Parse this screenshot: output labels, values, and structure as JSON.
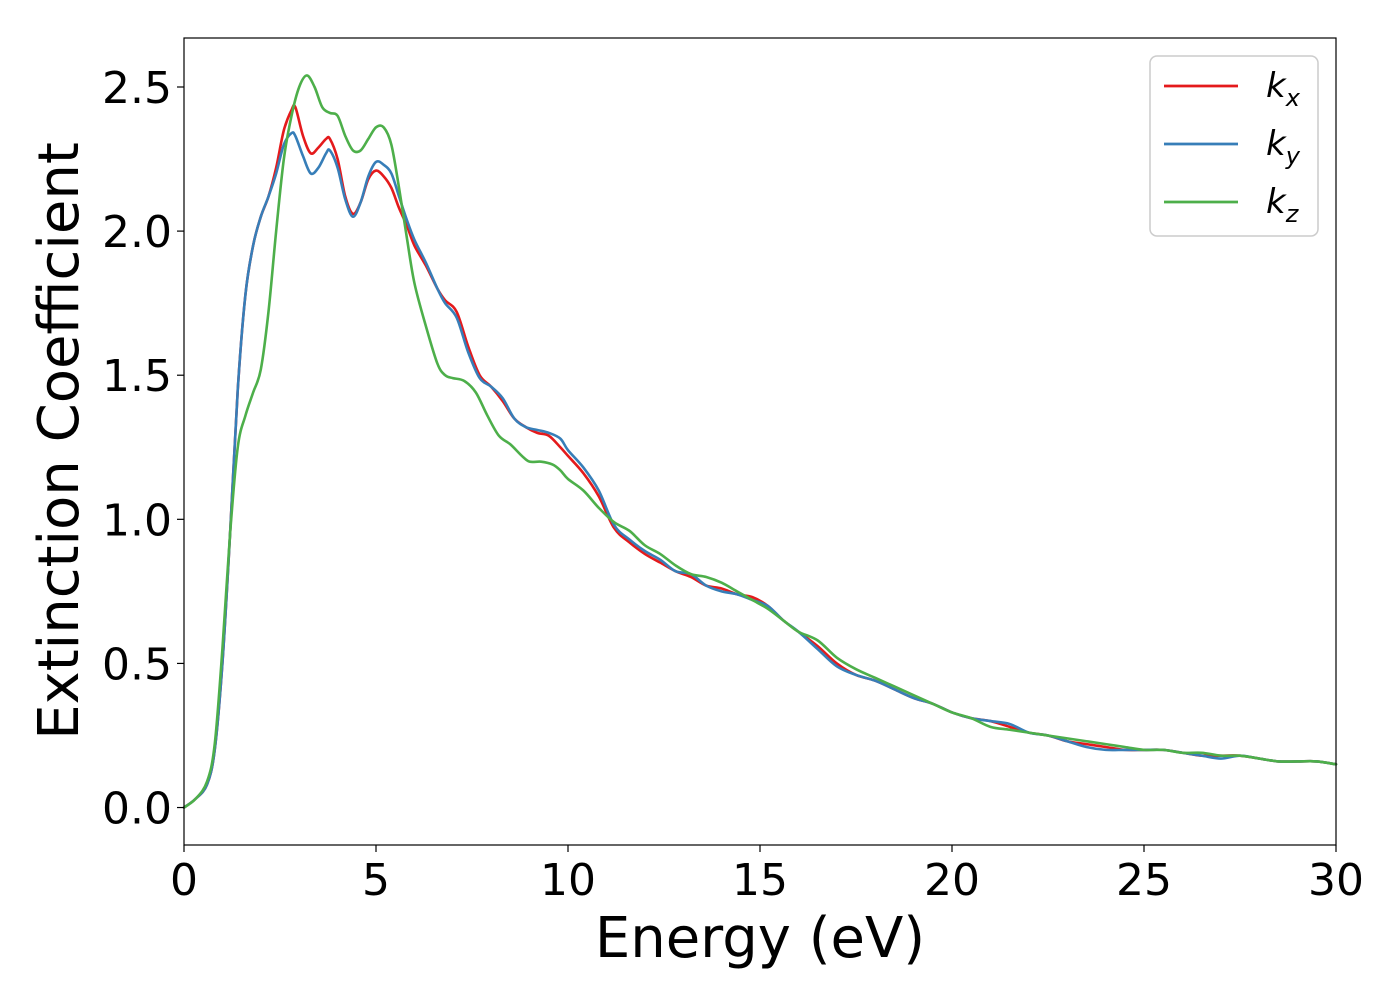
{
  "chart_data": {
    "type": "line",
    "xlabel": "Energy (eV)",
    "ylabel": "Extinction Coefficient",
    "xlim": [
      0,
      30
    ],
    "ylim": [
      -0.13,
      2.67
    ],
    "xticks": [
      0,
      5,
      10,
      15,
      20,
      25,
      30
    ],
    "yticks": [
      0.0,
      0.5,
      1.0,
      1.5,
      2.0,
      2.5
    ],
    "xtick_labels": [
      "0",
      "5",
      "10",
      "15",
      "20",
      "25",
      "30"
    ],
    "ytick_labels": [
      "0.0",
      "0.5",
      "1.0",
      "1.5",
      "2.0",
      "2.5"
    ],
    "grid": false,
    "legend_position": "top-right",
    "series": [
      {
        "name": "k_x",
        "label_base": "k",
        "label_sub": "x",
        "color": "#e41a1c",
        "x": [
          0,
          0.3,
          0.6,
          0.8,
          1.0,
          1.2,
          1.4,
          1.6,
          1.8,
          2.0,
          2.2,
          2.4,
          2.6,
          2.8,
          2.9,
          3.1,
          3.3,
          3.5,
          3.7,
          3.8,
          4.0,
          4.2,
          4.4,
          4.6,
          4.8,
          5.0,
          5.2,
          5.4,
          5.6,
          5.8,
          6.0,
          6.3,
          6.6,
          6.8,
          7.1,
          7.4,
          7.7,
          8.0,
          8.3,
          8.6,
          8.9,
          9.2,
          9.5,
          9.8,
          10.0,
          10.4,
          10.8,
          11.2,
          11.6,
          12.0,
          12.4,
          12.8,
          13.2,
          13.6,
          14.0,
          14.4,
          14.8,
          15.2,
          15.6,
          16.0,
          16.5,
          17.0,
          17.5,
          18.0,
          18.5,
          19.0,
          19.5,
          20.0,
          20.5,
          21.0,
          21.5,
          22.0,
          22.5,
          23.0,
          23.5,
          24.0,
          24.5,
          25.0,
          25.5,
          26.0,
          26.5,
          27.0,
          27.5,
          28.0,
          28.5,
          29.0,
          29.5,
          30.0
        ],
        "y": [
          0.0,
          0.03,
          0.08,
          0.2,
          0.5,
          0.95,
          1.45,
          1.78,
          1.95,
          2.05,
          2.12,
          2.22,
          2.35,
          2.42,
          2.43,
          2.33,
          2.27,
          2.29,
          2.32,
          2.32,
          2.25,
          2.12,
          2.06,
          2.1,
          2.18,
          2.21,
          2.19,
          2.15,
          2.08,
          2.02,
          1.95,
          1.88,
          1.8,
          1.76,
          1.72,
          1.6,
          1.5,
          1.46,
          1.41,
          1.35,
          1.32,
          1.3,
          1.29,
          1.25,
          1.22,
          1.16,
          1.08,
          0.97,
          0.92,
          0.88,
          0.85,
          0.82,
          0.8,
          0.77,
          0.76,
          0.74,
          0.73,
          0.7,
          0.65,
          0.61,
          0.56,
          0.5,
          0.46,
          0.44,
          0.41,
          0.38,
          0.36,
          0.33,
          0.31,
          0.3,
          0.28,
          0.26,
          0.25,
          0.23,
          0.22,
          0.21,
          0.2,
          0.2,
          0.2,
          0.19,
          0.18,
          0.18,
          0.18,
          0.17,
          0.16,
          0.16,
          0.16,
          0.15
        ]
      },
      {
        "name": "k_y",
        "label_base": "k",
        "label_sub": "y",
        "color": "#377eb8",
        "x": [
          0,
          0.3,
          0.6,
          0.8,
          1.0,
          1.2,
          1.4,
          1.6,
          1.8,
          2.0,
          2.2,
          2.4,
          2.6,
          2.8,
          2.9,
          3.1,
          3.3,
          3.5,
          3.7,
          3.8,
          4.0,
          4.2,
          4.4,
          4.6,
          4.8,
          5.0,
          5.2,
          5.4,
          5.6,
          5.8,
          6.0,
          6.3,
          6.6,
          6.8,
          7.1,
          7.4,
          7.7,
          8.0,
          8.3,
          8.6,
          8.9,
          9.2,
          9.5,
          9.8,
          10.0,
          10.4,
          10.8,
          11.2,
          11.6,
          12.0,
          12.4,
          12.8,
          13.2,
          13.6,
          14.0,
          14.4,
          14.8,
          15.2,
          15.6,
          16.0,
          16.5,
          17.0,
          17.5,
          18.0,
          18.5,
          19.0,
          19.5,
          20.0,
          20.5,
          21.0,
          21.5,
          22.0,
          22.5,
          23.0,
          23.5,
          24.0,
          24.5,
          25.0,
          25.5,
          26.0,
          26.5,
          27.0,
          27.5,
          28.0,
          28.5,
          29.0,
          29.5,
          30.0
        ],
        "y": [
          0.0,
          0.03,
          0.08,
          0.2,
          0.5,
          0.95,
          1.45,
          1.78,
          1.95,
          2.05,
          2.12,
          2.2,
          2.3,
          2.34,
          2.33,
          2.26,
          2.2,
          2.22,
          2.27,
          2.28,
          2.22,
          2.11,
          2.05,
          2.1,
          2.19,
          2.24,
          2.23,
          2.2,
          2.12,
          2.04,
          1.97,
          1.89,
          1.8,
          1.75,
          1.7,
          1.58,
          1.49,
          1.46,
          1.42,
          1.35,
          1.32,
          1.31,
          1.3,
          1.28,
          1.24,
          1.18,
          1.1,
          0.98,
          0.93,
          0.89,
          0.86,
          0.82,
          0.81,
          0.77,
          0.75,
          0.74,
          0.72,
          0.7,
          0.65,
          0.61,
          0.55,
          0.49,
          0.46,
          0.44,
          0.41,
          0.38,
          0.36,
          0.33,
          0.31,
          0.3,
          0.29,
          0.26,
          0.25,
          0.23,
          0.21,
          0.2,
          0.2,
          0.2,
          0.2,
          0.19,
          0.18,
          0.17,
          0.18,
          0.17,
          0.16,
          0.16,
          0.16,
          0.15
        ]
      },
      {
        "name": "k_z",
        "label_base": "k",
        "label_sub": "z",
        "color": "#4daf4a",
        "x": [
          0,
          0.3,
          0.6,
          0.8,
          1.0,
          1.2,
          1.4,
          1.6,
          1.8,
          2.0,
          2.2,
          2.4,
          2.6,
          2.8,
          3.0,
          3.2,
          3.4,
          3.6,
          3.8,
          4.0,
          4.2,
          4.4,
          4.6,
          4.8,
          5.0,
          5.2,
          5.4,
          5.6,
          5.8,
          6.0,
          6.3,
          6.6,
          6.8,
          7.0,
          7.3,
          7.6,
          7.9,
          8.2,
          8.5,
          8.8,
          9.0,
          9.3,
          9.6,
          9.8,
          10.0,
          10.4,
          10.8,
          11.2,
          11.6,
          12.0,
          12.4,
          12.8,
          13.2,
          13.6,
          14.0,
          14.4,
          14.8,
          15.2,
          15.6,
          16.0,
          16.5,
          17.0,
          17.5,
          18.0,
          18.5,
          19.0,
          19.5,
          20.0,
          20.5,
          21.0,
          21.5,
          22.0,
          22.5,
          23.0,
          23.5,
          24.0,
          24.5,
          25.0,
          25.5,
          26.0,
          26.5,
          27.0,
          27.5,
          28.0,
          28.5,
          29.0,
          29.5,
          30.0
        ],
        "y": [
          0.0,
          0.03,
          0.09,
          0.22,
          0.55,
          0.95,
          1.25,
          1.36,
          1.44,
          1.52,
          1.72,
          2.0,
          2.25,
          2.4,
          2.5,
          2.54,
          2.5,
          2.43,
          2.41,
          2.4,
          2.33,
          2.28,
          2.28,
          2.32,
          2.36,
          2.36,
          2.3,
          2.15,
          1.98,
          1.82,
          1.67,
          1.54,
          1.5,
          1.49,
          1.48,
          1.44,
          1.36,
          1.29,
          1.26,
          1.22,
          1.2,
          1.2,
          1.19,
          1.17,
          1.14,
          1.1,
          1.04,
          0.99,
          0.96,
          0.91,
          0.88,
          0.84,
          0.81,
          0.8,
          0.78,
          0.75,
          0.72,
          0.69,
          0.65,
          0.61,
          0.58,
          0.52,
          0.48,
          0.45,
          0.42,
          0.39,
          0.36,
          0.33,
          0.31,
          0.28,
          0.27,
          0.26,
          0.25,
          0.24,
          0.23,
          0.22,
          0.21,
          0.2,
          0.2,
          0.19,
          0.19,
          0.18,
          0.18,
          0.17,
          0.16,
          0.16,
          0.16,
          0.15
        ]
      }
    ]
  }
}
